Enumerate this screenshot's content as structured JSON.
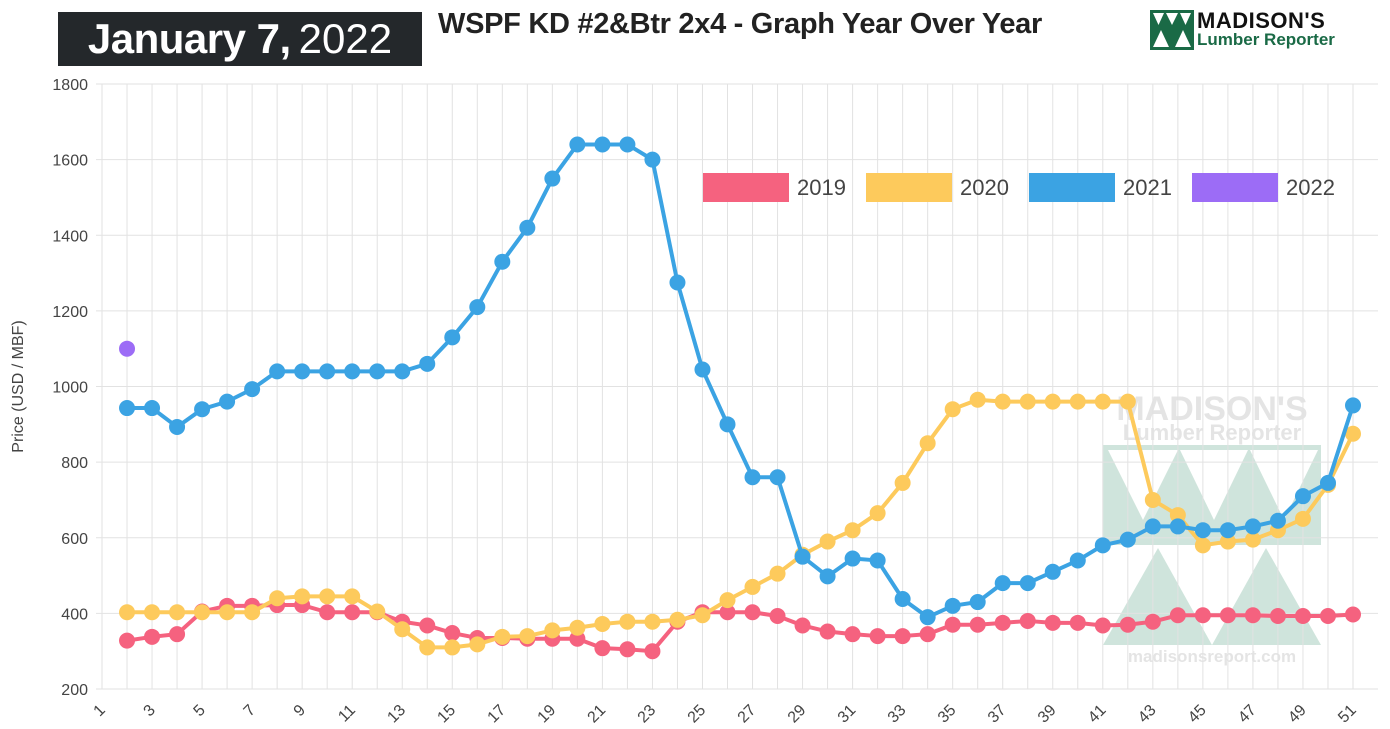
{
  "header": {
    "date_month_day": "January 7,",
    "date_year": "2022",
    "title": "WSPF KD #2&Btr 2x4 - Graph Year Over Year"
  },
  "logo": {
    "name": "MADISON'S",
    "subtitle": "Lumber Reporter"
  },
  "watermark": {
    "name": "MADISON'S",
    "subtitle": "Lumber Reporter",
    "url": "madisonsreport.com"
  },
  "chart_data": {
    "type": "line",
    "ylabel": "Price (USD / MBF)",
    "xlabel": "",
    "ylim": [
      200,
      1800
    ],
    "yticks": [
      200,
      400,
      600,
      800,
      1000,
      1200,
      1400,
      1600,
      1800
    ],
    "xlim": [
      1,
      51
    ],
    "xticks": [
      1,
      3,
      5,
      7,
      9,
      11,
      13,
      15,
      17,
      19,
      21,
      23,
      25,
      27,
      29,
      31,
      33,
      35,
      37,
      39,
      41,
      43,
      45,
      47,
      49,
      51
    ],
    "grid": true,
    "legend_position": "top-right",
    "series": [
      {
        "name": "2019",
        "color": "#f5627f",
        "x": [
          2,
          3,
          4,
          5,
          6,
          7,
          8,
          9,
          10,
          11,
          12,
          13,
          14,
          15,
          16,
          17,
          18,
          19,
          20,
          21,
          22,
          23,
          24,
          25,
          26,
          27,
          28,
          29,
          30,
          31,
          32,
          33,
          34,
          35,
          36,
          37,
          38,
          39,
          40,
          41,
          42,
          43,
          44,
          45,
          46,
          47,
          48,
          49,
          50,
          51
        ],
        "values": [
          328,
          338,
          345,
          405,
          420,
          420,
          422,
          422,
          403,
          403,
          403,
          378,
          368,
          348,
          335,
          335,
          333,
          333,
          333,
          308,
          305,
          300,
          378,
          403,
          403,
          403,
          393,
          368,
          352,
          345,
          340,
          340,
          345,
          370,
          370,
          375,
          380,
          375,
          375,
          368,
          370,
          378,
          395,
          395,
          395,
          395,
          393,
          393,
          393,
          397
        ]
      },
      {
        "name": "2020",
        "color": "#fdca5c",
        "x": [
          2,
          3,
          4,
          5,
          6,
          7,
          8,
          9,
          10,
          11,
          12,
          13,
          14,
          15,
          16,
          17,
          18,
          19,
          20,
          21,
          22,
          23,
          24,
          25,
          26,
          27,
          28,
          29,
          30,
          31,
          32,
          33,
          34,
          35,
          36,
          37,
          38,
          39,
          40,
          41,
          42,
          43,
          44,
          45,
          46,
          47,
          48,
          49,
          50,
          51
        ],
        "values": [
          403,
          403,
          403,
          403,
          403,
          403,
          440,
          445,
          445,
          445,
          405,
          358,
          310,
          310,
          318,
          338,
          340,
          355,
          362,
          372,
          378,
          378,
          383,
          395,
          435,
          470,
          505,
          555,
          590,
          620,
          665,
          745,
          850,
          940,
          965,
          960,
          960,
          960,
          960,
          960,
          960,
          700,
          660,
          580,
          590,
          595,
          620,
          650,
          740,
          875
        ]
      },
      {
        "name": "2021",
        "color": "#3ba3e3",
        "x": [
          2,
          3,
          4,
          5,
          6,
          7,
          8,
          9,
          10,
          11,
          12,
          13,
          14,
          15,
          16,
          17,
          18,
          19,
          20,
          21,
          22,
          23,
          24,
          25,
          26,
          27,
          28,
          29,
          30,
          31,
          32,
          33,
          34,
          35,
          36,
          37,
          38,
          39,
          40,
          41,
          42,
          43,
          44,
          45,
          46,
          47,
          48,
          49,
          50,
          51
        ],
        "values": [
          943,
          943,
          893,
          940,
          960,
          993,
          1040,
          1040,
          1040,
          1040,
          1040,
          1040,
          1060,
          1130,
          1210,
          1330,
          1420,
          1550,
          1640,
          1640,
          1640,
          1600,
          1275,
          1045,
          900,
          760,
          760,
          550,
          498,
          545,
          540,
          438,
          390,
          420,
          430,
          480,
          480,
          510,
          540,
          580,
          595,
          630,
          630,
          620,
          620,
          630,
          645,
          710,
          745,
          950
        ]
      },
      {
        "name": "2022",
        "color": "#9c6cf6",
        "x": [
          2
        ],
        "values": [
          1100
        ]
      }
    ]
  }
}
